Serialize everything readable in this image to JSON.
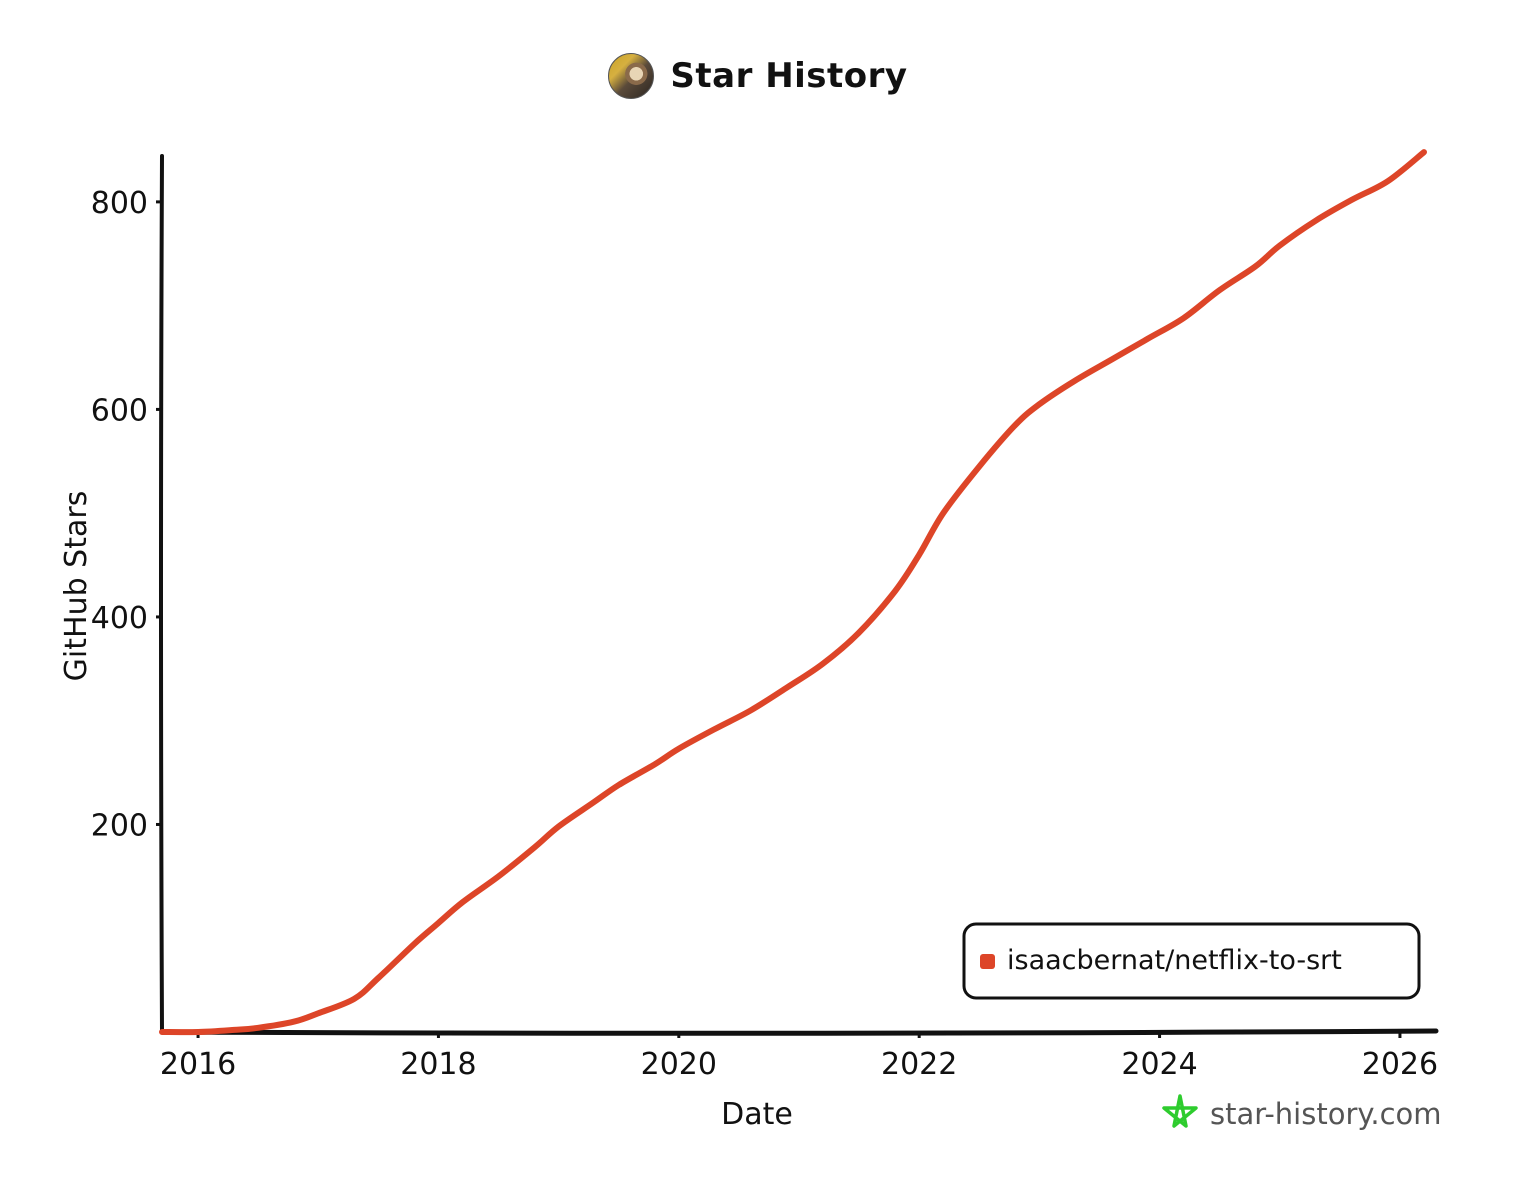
{
  "header": {
    "title": "Star History"
  },
  "chart_data": {
    "type": "line",
    "title": "Star History",
    "xlabel": "Date",
    "ylabel": "GitHub Stars",
    "x_ticks": [
      "2016",
      "2018",
      "2020",
      "2022",
      "2024",
      "2026"
    ],
    "y_ticks": [
      "200",
      "400",
      "600",
      "800"
    ],
    "xlim": [
      2015.7,
      2026.3
    ],
    "ylim": [
      0,
      850
    ],
    "grid": false,
    "legend": "bottom-right",
    "series": [
      {
        "name": "isaacbernat/netflix-to-srt",
        "color": "#dd4528",
        "x": [
          2015.7,
          2016.0,
          2016.3,
          2016.5,
          2016.8,
          2017.0,
          2017.3,
          2017.5,
          2017.8,
          2018.0,
          2018.2,
          2018.5,
          2018.8,
          2019.0,
          2019.3,
          2019.5,
          2019.8,
          2020.0,
          2020.3,
          2020.6,
          2020.9,
          2021.2,
          2021.5,
          2021.8,
          2022.0,
          2022.2,
          2022.5,
          2022.8,
          2023.0,
          2023.3,
          2023.6,
          2023.9,
          2024.2,
          2024.5,
          2024.8,
          2025.0,
          2025.3,
          2025.6,
          2025.9,
          2026.2
        ],
        "values": [
          0,
          0,
          2,
          4,
          10,
          18,
          32,
          52,
          85,
          105,
          125,
          150,
          178,
          198,
          222,
          238,
          258,
          273,
          292,
          310,
          332,
          355,
          385,
          425,
          460,
          500,
          545,
          585,
          605,
          628,
          648,
          668,
          688,
          715,
          738,
          758,
          782,
          802,
          820,
          848
        ]
      }
    ]
  },
  "legend": {
    "items": [
      {
        "label": "isaacbernat/netflix-to-srt",
        "color": "#dd4528"
      }
    ]
  },
  "watermark": {
    "text": "star-history.com"
  }
}
